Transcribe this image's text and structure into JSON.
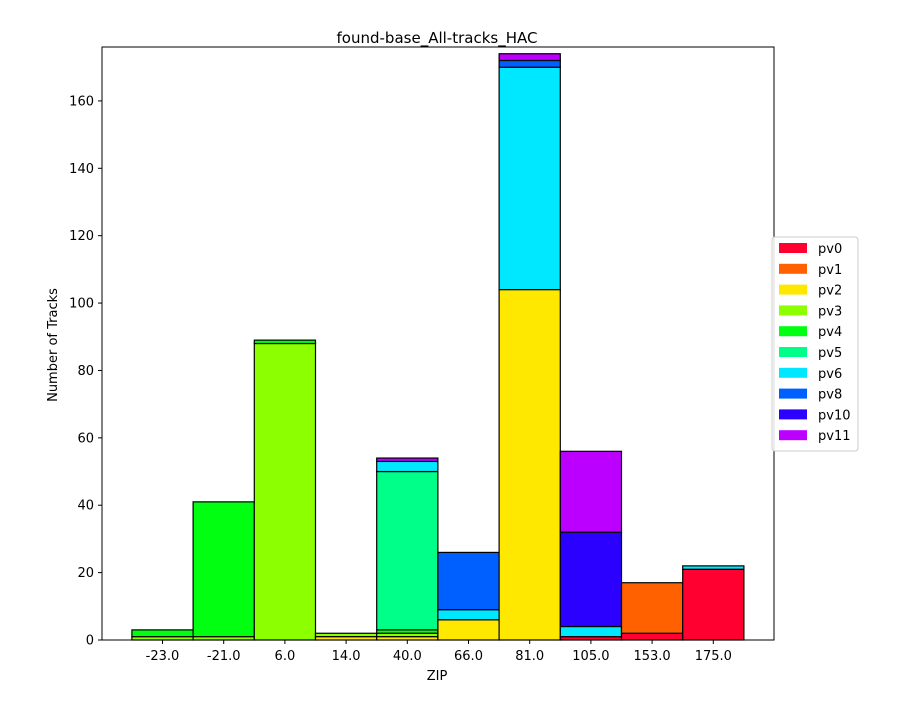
{
  "chart_data": {
    "type": "bar",
    "stacked": true,
    "title": "found-base_All-tracks_HAC",
    "xlabel": "ZIP",
    "ylabel": "Number of Tracks",
    "categories": [
      "-23.0",
      "-21.0",
      "6.0",
      "14.0",
      "40.0",
      "66.0",
      "81.0",
      "105.0",
      "153.0",
      "175.0"
    ],
    "ylim": [
      0,
      176
    ],
    "yticks": [
      0,
      20,
      40,
      60,
      80,
      100,
      120,
      140,
      160
    ],
    "legend_position": "center-right",
    "grid": false,
    "series": [
      {
        "name": "pv0",
        "color": "#ff0030",
        "values": [
          0,
          0,
          0,
          0,
          0,
          0,
          0,
          1,
          2,
          21
        ]
      },
      {
        "name": "pv1",
        "color": "#ff6000",
        "values": [
          0,
          0,
          0,
          0,
          0,
          0,
          0,
          0,
          15,
          0
        ]
      },
      {
        "name": "pv2",
        "color": "#ffe800",
        "values": [
          0,
          0,
          0,
          1,
          1,
          6,
          104,
          0,
          0,
          0
        ]
      },
      {
        "name": "pv3",
        "color": "#8cff00",
        "values": [
          1,
          1,
          88,
          1,
          1,
          0,
          0,
          0,
          0,
          0
        ]
      },
      {
        "name": "pv4",
        "color": "#00ff10",
        "values": [
          2,
          40,
          1,
          0,
          1,
          0,
          0,
          0,
          0,
          0
        ]
      },
      {
        "name": "pv5",
        "color": "#00ff88",
        "values": [
          0,
          0,
          0,
          0,
          47,
          0,
          0,
          0,
          0,
          0
        ]
      },
      {
        "name": "pv6",
        "color": "#00e8ff",
        "values": [
          0,
          0,
          0,
          0,
          3,
          3,
          66,
          3,
          0,
          1
        ]
      },
      {
        "name": "pv8",
        "color": "#0060ff",
        "values": [
          0,
          0,
          0,
          0,
          0,
          17,
          2,
          0,
          0,
          0
        ]
      },
      {
        "name": "pv10",
        "color": "#2c00ff",
        "values": [
          0,
          0,
          0,
          0,
          0,
          0,
          0,
          28,
          0,
          0
        ]
      },
      {
        "name": "pv11",
        "color": "#bc00ff",
        "values": [
          0,
          0,
          0,
          0,
          1,
          0,
          2,
          24,
          0,
          0
        ]
      }
    ]
  }
}
